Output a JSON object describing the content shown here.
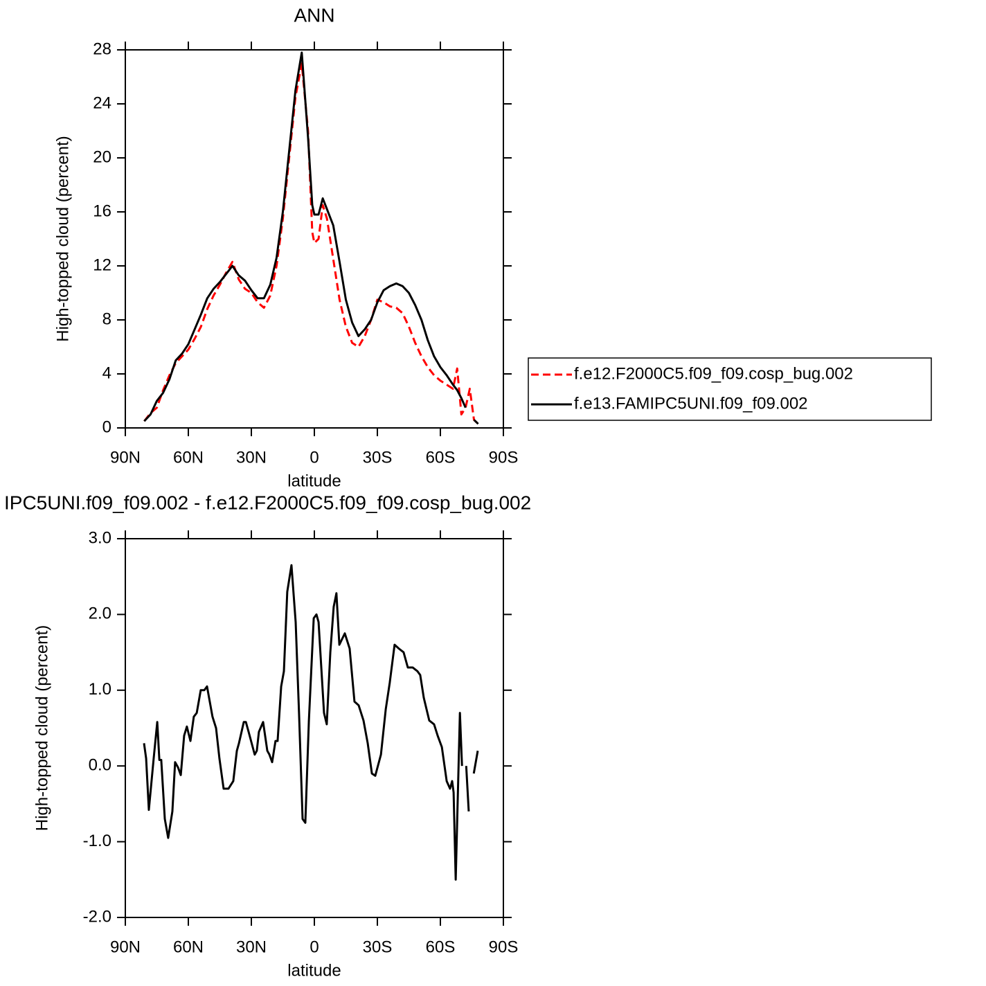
{
  "chart_data": [
    {
      "type": "line",
      "title": "ANN",
      "xlabel": "latitude",
      "ylabel": "High-topped cloud (percent)",
      "xlim": [
        90,
        -90
      ],
      "xticks": [
        {
          "value": 90,
          "label": "90N"
        },
        {
          "value": 60,
          "label": "60N"
        },
        {
          "value": 30,
          "label": "30N"
        },
        0,
        {
          "value": -30,
          "label": "30S"
        },
        {
          "value": -60,
          "label": "60S"
        },
        {
          "value": -90,
          "label": "90S"
        }
      ],
      "ylim": [
        0,
        28
      ],
      "yticks": [
        0,
        4,
        8,
        12,
        16,
        20,
        24,
        28
      ],
      "x": [
        81,
        78,
        75,
        72,
        69,
        66,
        63,
        60,
        57,
        54,
        51,
        48,
        45,
        42,
        39,
        36,
        33,
        30,
        27,
        24,
        21,
        18,
        15,
        12,
        9,
        6,
        3,
        1,
        0,
        -2,
        -4,
        -6,
        -9,
        -12,
        -15,
        -18,
        -21,
        -24,
        -27,
        -30,
        -33,
        -36,
        -39,
        -42,
        -45,
        -48,
        -51,
        -54,
        -57,
        -60,
        -63,
        -66,
        -68,
        -70,
        -72,
        -74,
        -76,
        -78
      ],
      "series": [
        {
          "name": "f.e12.F2000C5.f09_f09.cosp_bug.002",
          "color": "#ff0000",
          "dashed": true,
          "values": [
            0.5,
            1.1,
            1.5,
            2.8,
            3.9,
            4.8,
            5.3,
            5.8,
            6.6,
            7.5,
            8.8,
            9.8,
            10.6,
            11.5,
            12.3,
            11.0,
            10.3,
            10.0,
            9.3,
            8.9,
            9.8,
            12.0,
            15.5,
            20.0,
            24.5,
            27.0,
            22.0,
            14.5,
            13.7,
            14.0,
            16.5,
            15.5,
            12.5,
            9.5,
            7.5,
            6.3,
            6.0,
            6.8,
            8.0,
            9.5,
            9.3,
            9.0,
            8.9,
            8.5,
            7.5,
            6.3,
            5.3,
            4.5,
            3.9,
            3.5,
            3.2,
            2.9,
            4.4,
            1.0,
            1.5,
            2.9,
            0.6,
            0.3
          ]
        },
        {
          "name": "f.e13.FAMIPC5UNI.f09_f09.002",
          "color": "#000000",
          "dashed": false,
          "values": [
            0.5,
            1.0,
            2.0,
            2.6,
            3.6,
            5.0,
            5.5,
            6.2,
            7.3,
            8.4,
            9.6,
            10.3,
            10.8,
            11.4,
            12.0,
            11.3,
            10.9,
            10.2,
            9.6,
            9.6,
            10.6,
            12.6,
            16.0,
            20.5,
            25.0,
            27.8,
            21.5,
            16.5,
            15.8,
            15.8,
            17.0,
            16.2,
            15.0,
            12.3,
            9.5,
            7.8,
            6.8,
            7.3,
            8.0,
            9.3,
            10.2,
            10.5,
            10.7,
            10.5,
            10.0,
            9.1,
            8.0,
            6.5,
            5.3,
            4.5,
            3.9,
            3.2,
            2.8,
            2.2,
            1.5,
            null,
            0.6,
            0.3
          ]
        }
      ]
    },
    {
      "type": "line",
      "title": "IPC5UNI.f09_f09.002 - f.e12.F2000C5.f09_f09.cosp_bug.002",
      "xlabel": "latitude",
      "ylabel": "High-topped cloud (percent)",
      "xlim": [
        90,
        -90
      ],
      "xticks": [
        {
          "value": 90,
          "label": "90N"
        },
        {
          "value": 60,
          "label": "60N"
        },
        {
          "value": 30,
          "label": "30N"
        },
        0,
        {
          "value": -30,
          "label": "30S"
        },
        {
          "value": -60,
          "label": "60S"
        },
        {
          "value": -90,
          "label": "90S"
        }
      ],
      "ylim": [
        -2,
        3
      ],
      "yticks": [
        {
          "value": -2,
          "label": "-2.0"
        },
        {
          "value": -1,
          "label": "-1.0"
        },
        {
          "value": 0,
          "label": "0.0"
        },
        {
          "value": 1,
          "label": "1.0"
        },
        {
          "value": 2,
          "label": "2.0"
        },
        {
          "value": 3,
          "label": "3.0"
        }
      ],
      "x": [
        81.1,
        80.1,
        78.8,
        76.5,
        74.8,
        73.8,
        72.9,
        71.2,
        69.6,
        67.6,
        66.3,
        64.9,
        63.6,
        62.0,
        60.7,
        59.0,
        57.4,
        56.0,
        54.1,
        52.4,
        51.1,
        49.8,
        48.5,
        46.8,
        45.2,
        43.2,
        40.9,
        38.6,
        36.9,
        35.9,
        33.6,
        32.6,
        31.3,
        28.4,
        27.4,
        26.4,
        24.4,
        22.4,
        21.4,
        20.1,
        18.5,
        17.5,
        15.8,
        14.5,
        12.9,
        10.9,
        8.9,
        7.3,
        5.6,
        4.3,
        2.6,
        0.3,
        -1.0,
        -2.0,
        -3.3,
        -4.6,
        -5.9,
        -7.6,
        -9.2,
        -10.5,
        -11.9,
        -14.5,
        -16.8,
        -19.1,
        -21.1,
        -23.4,
        -25.4,
        -27.4,
        -29.0,
        -31.7,
        -34.0,
        -35.9,
        -38.2,
        -40.2,
        -42.5,
        -44.5,
        -46.8,
        -49.1,
        -50.4,
        -52.1,
        -54.7,
        -57.0,
        -58.7,
        -60.7,
        -63.0,
        -64.6,
        -65.6,
        -66.3,
        -67.3,
        -69.3,
        -70.3,
        -71.3,
        -72.3,
        -73.5,
        -74.8,
        -75.9,
        -77.8
      ],
      "series": [
        {
          "color": "#000000",
          "dashed": false,
          "values": [
            0.3,
            0.1,
            -0.58,
            0.1,
            0.58,
            0.08,
            0.08,
            -0.7,
            -0.95,
            -0.6,
            0.05,
            -0.02,
            -0.12,
            0.4,
            0.52,
            0.33,
            0.65,
            0.7,
            1.0,
            1.0,
            1.05,
            0.85,
            0.65,
            0.5,
            0.1,
            -0.3,
            -0.3,
            -0.2,
            0.2,
            0.3,
            0.58,
            0.58,
            0.45,
            0.15,
            0.2,
            0.45,
            0.58,
            0.2,
            0.15,
            0.05,
            0.33,
            0.33,
            1.05,
            1.25,
            2.3,
            2.65,
            1.9,
            0.7,
            -0.7,
            -0.75,
            0.6,
            1.95,
            2.0,
            1.9,
            1.3,
            0.7,
            0.55,
            1.5,
            2.1,
            2.28,
            1.6,
            1.75,
            1.55,
            0.85,
            0.8,
            0.6,
            0.3,
            -0.1,
            -0.13,
            0.15,
            0.75,
            1.1,
            1.6,
            1.55,
            1.5,
            1.3,
            1.3,
            1.25,
            1.2,
            0.9,
            0.6,
            0.55,
            0.4,
            0.25,
            -0.2,
            -0.3,
            -0.2,
            -0.35,
            -1.5,
            0.7,
            0.0,
            null,
            0.0,
            -0.6,
            null,
            -0.1,
            0.2
          ]
        }
      ]
    }
  ]
}
